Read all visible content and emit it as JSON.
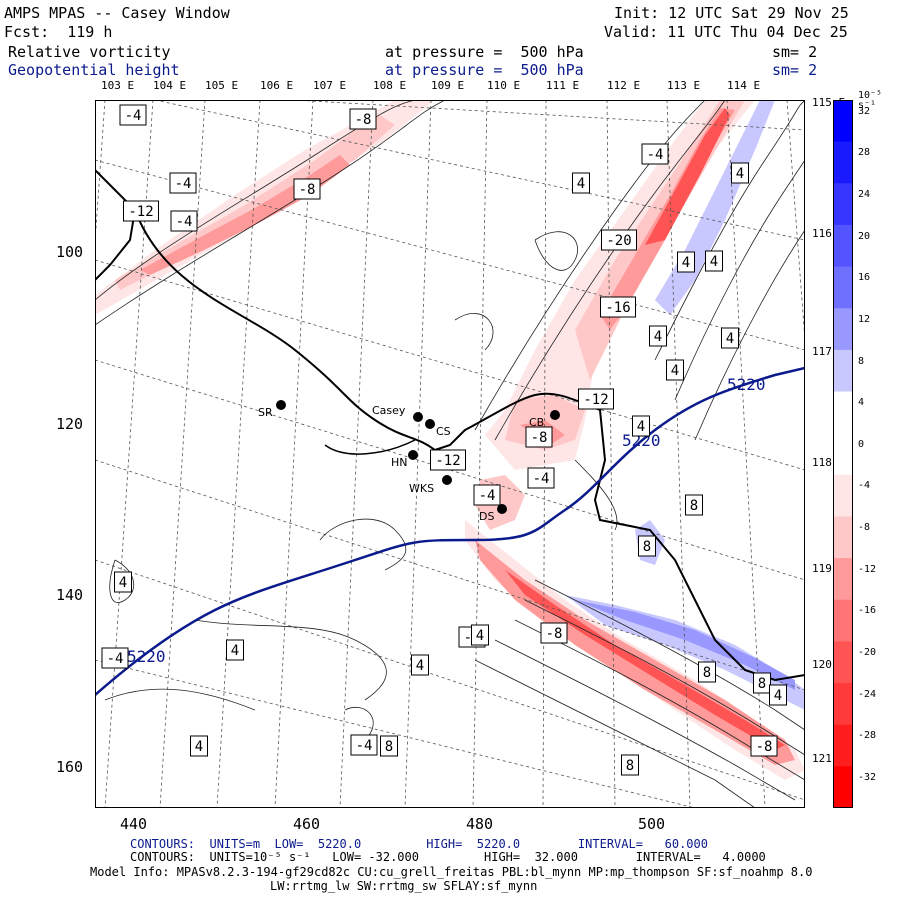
{
  "header": {
    "title": "AMPS MPAS -- Casey Window",
    "init": "Init: 12 UTC Sat 29 Nov 25",
    "fcst": "Fcst:  119 h",
    "valid": "Valid: 11 UTC Thu 04 Dec 25",
    "field1_name": "Relative vorticity",
    "field1_level": "at pressure =  500 hPa",
    "field1_sm": "sm= 2",
    "field2_name": "Geopotential height",
    "field2_level": "at pressure =  500 hPa",
    "field2_sm": "sm= 2"
  },
  "map": {
    "lon_labels": [
      "103 E",
      "104 E",
      "105 E",
      "106 E",
      "107 E",
      "108 E",
      "109 E",
      "110 E",
      "111 E",
      "112 E",
      "113 E",
      "114 E"
    ],
    "right_lon_labels": [
      "115 E",
      "116 E",
      "117 E",
      "118 E",
      "119 E",
      "120 E",
      "121 E"
    ],
    "x_axis_ticks": [
      "440",
      "460",
      "480",
      "500"
    ],
    "y_axis_ticks": [
      "100",
      "120",
      "140",
      "160"
    ],
    "stations": [
      "SR",
      "Casey",
      "CS",
      "HN",
      "WKS",
      "DS",
      "CB"
    ],
    "height_contour_labels": [
      "5220",
      "5220",
      "5220"
    ],
    "vorticity_labels": [
      "-4",
      "-8",
      "-4",
      "-8",
      "-12",
      "-4",
      "-4",
      "-20",
      "-16",
      "-12",
      "-8",
      "-12",
      "-4",
      "-4",
      "-4",
      "-8",
      "-4",
      "-4",
      "4",
      "4",
      "4",
      "4",
      "4",
      "4",
      "4",
      "4",
      "4",
      "4",
      "4",
      "4",
      "4",
      "8",
      "8",
      "8",
      "8",
      "8",
      "8",
      "4",
      "-8"
    ]
  },
  "colorbar": {
    "unit": "10⁻⁵ s⁻¹",
    "labels": [
      "32",
      "28",
      "24",
      "20",
      "16",
      "12",
      "8",
      "4",
      "0",
      "-4",
      "-8",
      "-12",
      "-16",
      "-20",
      "-24",
      "-28",
      "-32"
    ],
    "colors": [
      "#0000ff",
      "#1a1aff",
      "#3636ff",
      "#5454ff",
      "#7070ff",
      "#9898ff",
      "#c8c8ff",
      "#ffffff",
      "#ffffff",
      "#ffe6e6",
      "#ffc8c8",
      "#ff9a9a",
      "#ff7474",
      "#ff5454",
      "#ff3a3a",
      "#ff1e1e",
      "#ff0000"
    ]
  },
  "footer": {
    "contours_height": "CONTOURS:  UNITS=m  LOW=  5220.0         HIGH=  5220.0        INTERVAL=   60.000",
    "contours_vort": "CONTOURS:  UNITS=10⁻⁵ s⁻¹   LOW= -32.000         HIGH=  32.000        INTERVAL=   4.0000",
    "model_info": "Model Info: MPASv8.2.3-194-gf29cd82c CU:cu_grell_freitas PBL:bl_mynn MP:mp_thompson SF:sf_noahmp 8.0",
    "model_info2": "LW:rrtmg_lw SW:rrtmg_sw SFLAY:sf_mynn"
  }
}
